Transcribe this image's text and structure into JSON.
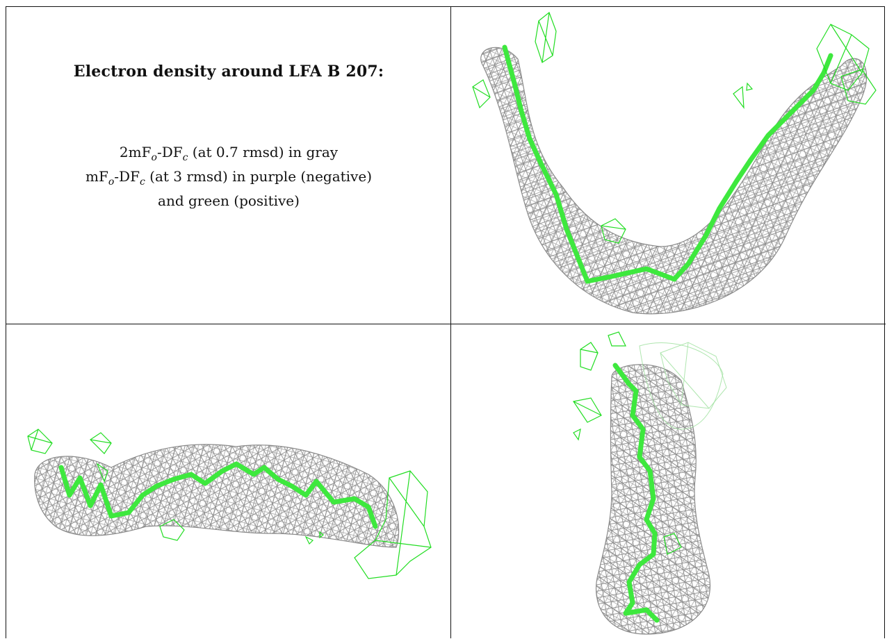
{
  "caption": {
    "title": "Electron density around LFA B 207:",
    "line1_pre": "2mF",
    "line1_sub1": "o",
    "line1_mid": "-DF",
    "line1_sub2": "c",
    "line1_post": " (at 0.7 rmsd) in gray",
    "line2_pre": "mF",
    "line2_sub1": "o",
    "line2_mid": "-DF",
    "line2_sub2": "c",
    "line2_post": " (at 3 rmsd) in purple (negative)",
    "line3": "and green (positive)"
  },
  "colors": {
    "mesh_gray": "#8a8a8a",
    "ligand_green": "#3ee83e",
    "density_green": "#22dd22",
    "border": "#111111"
  },
  "panels": [
    {
      "name": "top-right-view",
      "content": "density-mesh-u-shape"
    },
    {
      "name": "bottom-left-view",
      "content": "density-mesh-horizontal"
    },
    {
      "name": "bottom-right-view",
      "content": "density-mesh-vertical"
    }
  ]
}
